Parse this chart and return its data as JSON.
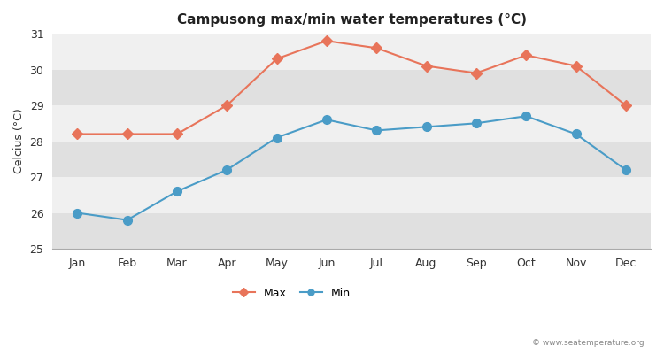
{
  "months": [
    "Jan",
    "Feb",
    "Mar",
    "Apr",
    "May",
    "Jun",
    "Jul",
    "Aug",
    "Sep",
    "Oct",
    "Nov",
    "Dec"
  ],
  "max_temps": [
    28.2,
    28.2,
    28.2,
    29.0,
    30.3,
    30.8,
    30.6,
    30.1,
    29.9,
    30.4,
    30.1,
    29.0
  ],
  "min_temps": [
    26.0,
    25.8,
    26.6,
    27.2,
    28.1,
    28.6,
    28.3,
    28.4,
    28.5,
    28.7,
    28.2,
    27.2
  ],
  "max_color": "#e8745a",
  "min_color": "#4a9cc7",
  "title": "Campusong max/min water temperatures (°C)",
  "ylabel": "Celcius (°C)",
  "ylim": [
    25,
    31
  ],
  "yticks": [
    25,
    26,
    27,
    28,
    29,
    30,
    31
  ],
  "fig_bg_color": "#ffffff",
  "band_light": "#f0f0f0",
  "band_dark": "#e0e0e0",
  "watermark": "© www.seatemperature.org",
  "max_marker": "D",
  "min_marker": "o",
  "linewidth": 1.5,
  "max_markersize": 6,
  "min_markersize": 7
}
